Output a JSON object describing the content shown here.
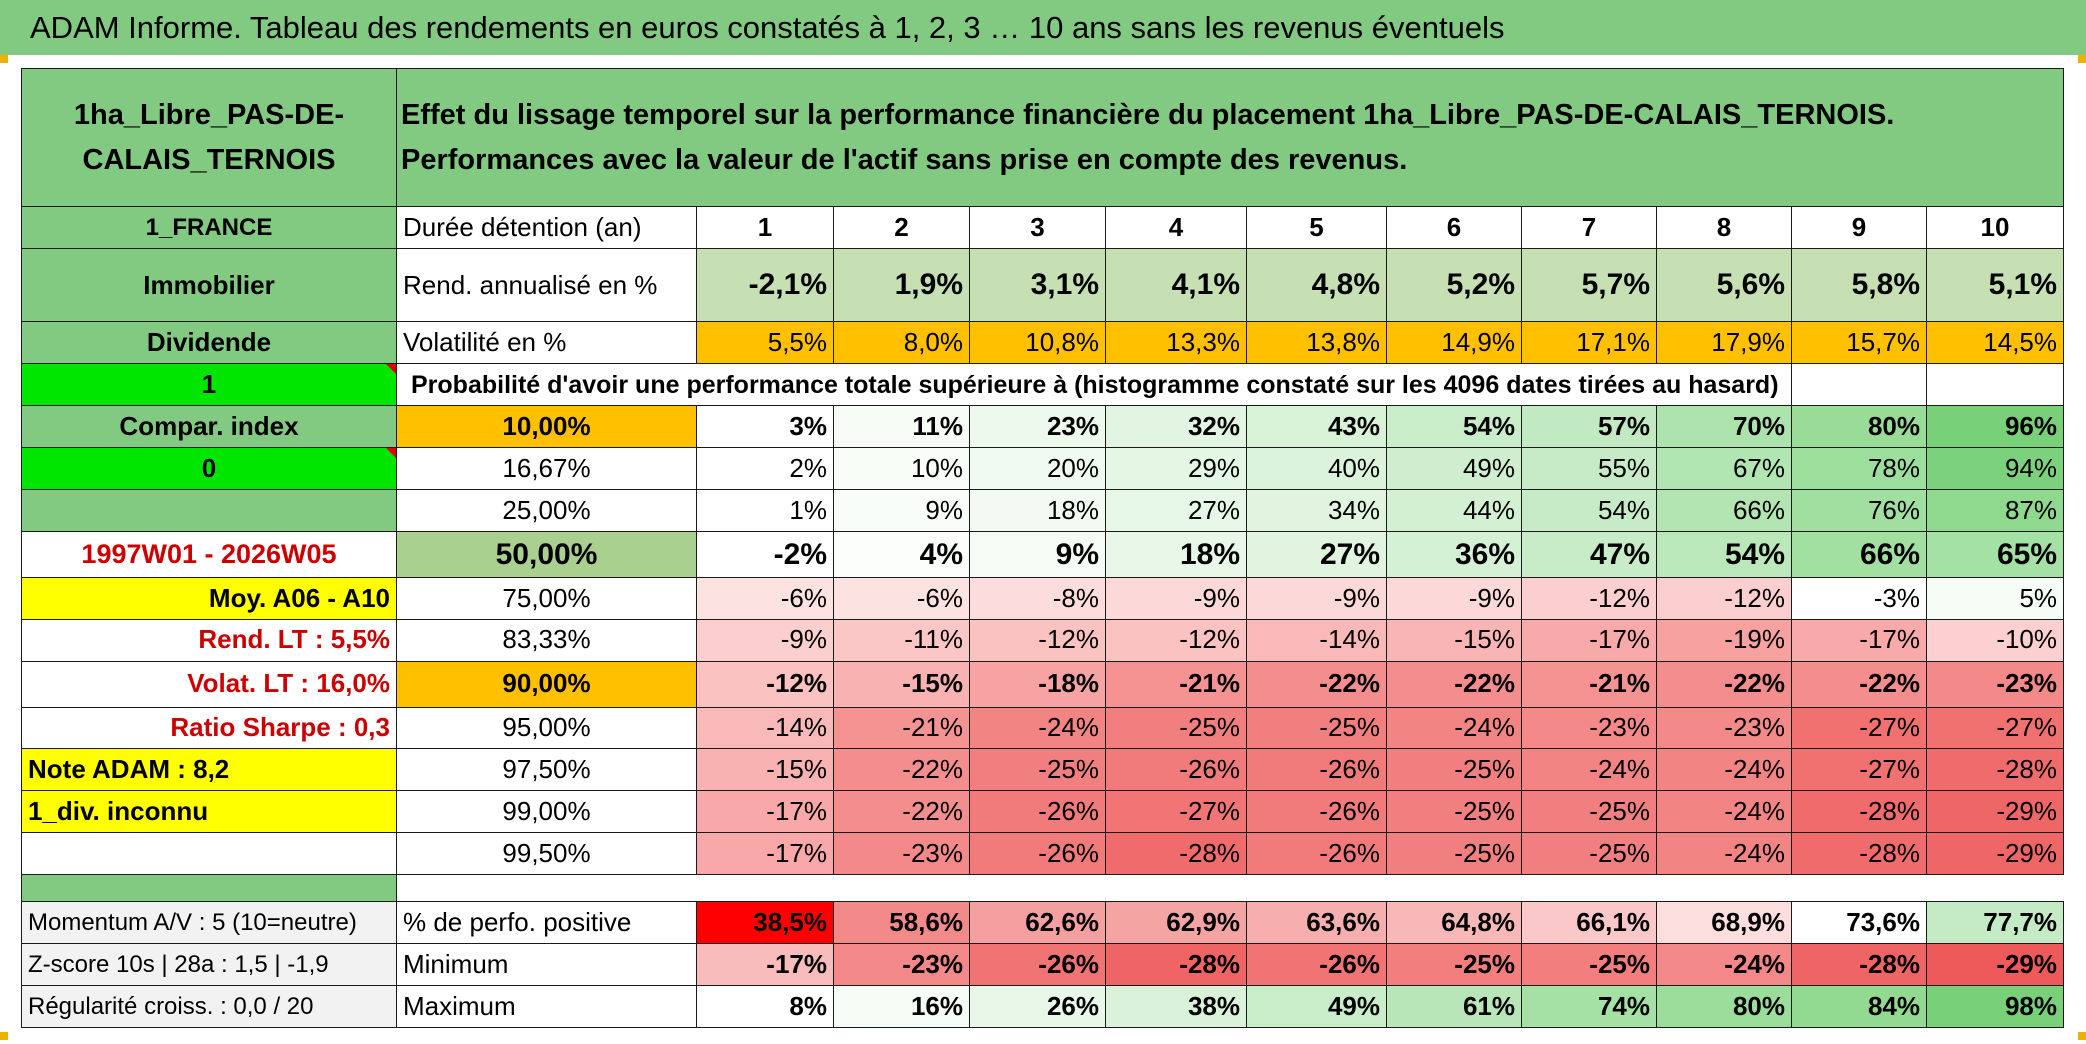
{
  "title": "ADAM Informe. Tableau des rendements en euros constatés à 1, 2, 3 … 10 ans sans les revenus éventuels",
  "header": {
    "fund_name": "1ha_Libre_PAS-DE-CALAIS_TERNOIS",
    "description": "Effet du lissage temporel sur la performance financière du placement 1ha_Libre_PAS-DE-CALAIS_TERNOIS. Performances avec la valeur de l'actif sans prise en compte des revenus."
  },
  "left": {
    "country": "1_FRANCE",
    "category": "Immobilier",
    "type": "Dividende",
    "flag1": "1",
    "compar_index": "Compar. index",
    "flag0": "0",
    "period": "1997W01 - 2026W05",
    "moy": "Moy. A06 - A10",
    "rend_lt": "Rend. LT :   5,5%",
    "volat_lt": "Volat. LT :   16,0%",
    "sharpe": "Ratio Sharpe :   0,3",
    "note": "Note ADAM : 8,2",
    "div": "1_div. inconnu",
    "momentum": "Momentum A/V : 5 (10=neutre)",
    "zscore": "Z-score 10s | 28a : 1,5 | -1,9",
    "regularite": "Régularité croiss. : 0,0 / 20"
  },
  "labels": {
    "duree": "Durée détention (an)",
    "rend": "Rend. annualisé en %",
    "volat": "Volatilité en %",
    "proba": "Probabilité d'avoir une performance totale supérieure à (histogramme constaté sur les 4096 dates tirées au hasard)",
    "perfo_pos": "% de perfo. positive",
    "minimum": "Minimum",
    "maximum": "Maximum"
  },
  "years": [
    "1",
    "2",
    "3",
    "4",
    "5",
    "6",
    "7",
    "8",
    "9",
    "10"
  ],
  "rend": [
    "-2,1%",
    "1,9%",
    "3,1%",
    "4,1%",
    "4,8%",
    "5,2%",
    "5,7%",
    "5,6%",
    "5,8%",
    "5,1%"
  ],
  "volat": [
    "5,5%",
    "8,0%",
    "10,8%",
    "13,3%",
    "13,8%",
    "14,9%",
    "17,1%",
    "17,9%",
    "15,7%",
    "14,5%"
  ],
  "percentiles": [
    {
      "p": "10,00%",
      "v": [
        "3%",
        "11%",
        "23%",
        "32%",
        "43%",
        "54%",
        "57%",
        "70%",
        "80%",
        "96%"
      ]
    },
    {
      "p": "16,67%",
      "v": [
        "2%",
        "10%",
        "20%",
        "29%",
        "40%",
        "49%",
        "55%",
        "67%",
        "78%",
        "94%"
      ]
    },
    {
      "p": "25,00%",
      "v": [
        "1%",
        "9%",
        "18%",
        "27%",
        "34%",
        "44%",
        "54%",
        "66%",
        "76%",
        "87%"
      ]
    },
    {
      "p": "50,00%",
      "v": [
        "-2%",
        "4%",
        "9%",
        "18%",
        "27%",
        "36%",
        "47%",
        "54%",
        "66%",
        "65%"
      ]
    },
    {
      "p": "75,00%",
      "v": [
        "-6%",
        "-6%",
        "-8%",
        "-9%",
        "-9%",
        "-9%",
        "-12%",
        "-12%",
        "-3%",
        "5%"
      ]
    },
    {
      "p": "83,33%",
      "v": [
        "-9%",
        "-11%",
        "-12%",
        "-12%",
        "-14%",
        "-15%",
        "-17%",
        "-19%",
        "-17%",
        "-10%"
      ]
    },
    {
      "p": "90,00%",
      "v": [
        "-12%",
        "-15%",
        "-18%",
        "-21%",
        "-22%",
        "-22%",
        "-21%",
        "-22%",
        "-22%",
        "-23%"
      ]
    },
    {
      "p": "95,00%",
      "v": [
        "-14%",
        "-21%",
        "-24%",
        "-25%",
        "-25%",
        "-24%",
        "-23%",
        "-23%",
        "-27%",
        "-27%"
      ]
    },
    {
      "p": "97,50%",
      "v": [
        "-15%",
        "-22%",
        "-25%",
        "-26%",
        "-26%",
        "-25%",
        "-24%",
        "-24%",
        "-27%",
        "-28%"
      ]
    },
    {
      "p": "99,00%",
      "v": [
        "-17%",
        "-22%",
        "-26%",
        "-27%",
        "-26%",
        "-25%",
        "-25%",
        "-24%",
        "-28%",
        "-29%"
      ]
    },
    {
      "p": "99,50%",
      "v": [
        "-17%",
        "-23%",
        "-26%",
        "-28%",
        "-26%",
        "-25%",
        "-25%",
        "-24%",
        "-28%",
        "-29%"
      ]
    }
  ],
  "perfo_pos": [
    "38,5%",
    "58,6%",
    "62,6%",
    "62,9%",
    "63,6%",
    "64,8%",
    "66,1%",
    "68,9%",
    "73,6%",
    "77,7%"
  ],
  "minimum": [
    "-17%",
    "-23%",
    "-26%",
    "-28%",
    "-26%",
    "-25%",
    "-25%",
    "-24%",
    "-28%",
    "-29%"
  ],
  "maximum": [
    "8%",
    "16%",
    "26%",
    "38%",
    "49%",
    "61%",
    "74%",
    "80%",
    "84%",
    "98%"
  ]
}
